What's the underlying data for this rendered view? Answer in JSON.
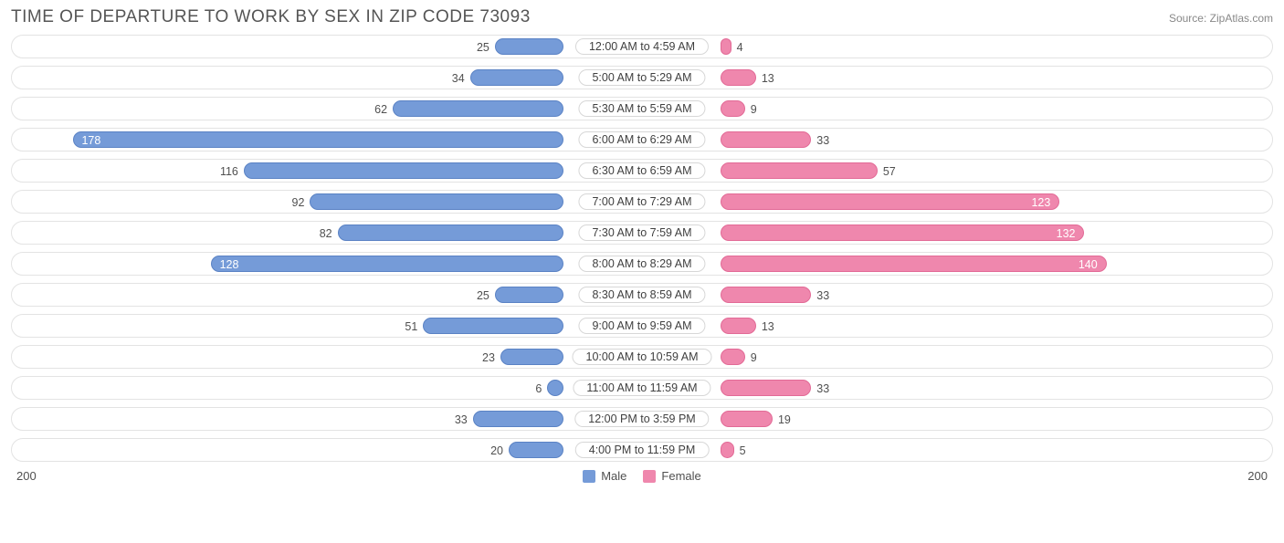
{
  "title": "TIME OF DEPARTURE TO WORK BY SEX IN ZIP CODE 73093",
  "source": "Source: ZipAtlas.com",
  "chart": {
    "type": "diverging-bar",
    "axis_max": 200,
    "axis_label_left": "200",
    "axis_label_right": "200",
    "track_border_color": "#e3e3e3",
    "track_bg": "#ffffff",
    "label_pill_border": "#d7d7d7",
    "text_color": "#505050",
    "male": {
      "label": "Male",
      "fill": "#759bd8",
      "border": "#5a82c4"
    },
    "female": {
      "label": "Female",
      "fill": "#ef87ad",
      "border": "#e26a96"
    },
    "label_fontsize": 12.5,
    "inside_threshold": 120,
    "rows": [
      {
        "category": "12:00 AM to 4:59 AM",
        "male": 25,
        "female": 4
      },
      {
        "category": "5:00 AM to 5:29 AM",
        "male": 34,
        "female": 13
      },
      {
        "category": "5:30 AM to 5:59 AM",
        "male": 62,
        "female": 9
      },
      {
        "category": "6:00 AM to 6:29 AM",
        "male": 178,
        "female": 33
      },
      {
        "category": "6:30 AM to 6:59 AM",
        "male": 116,
        "female": 57
      },
      {
        "category": "7:00 AM to 7:29 AM",
        "male": 92,
        "female": 123
      },
      {
        "category": "7:30 AM to 7:59 AM",
        "male": 82,
        "female": 132
      },
      {
        "category": "8:00 AM to 8:29 AM",
        "male": 128,
        "female": 140
      },
      {
        "category": "8:30 AM to 8:59 AM",
        "male": 25,
        "female": 33
      },
      {
        "category": "9:00 AM to 9:59 AM",
        "male": 51,
        "female": 13
      },
      {
        "category": "10:00 AM to 10:59 AM",
        "male": 23,
        "female": 9
      },
      {
        "category": "11:00 AM to 11:59 AM",
        "male": 6,
        "female": 33
      },
      {
        "category": "12:00 PM to 3:59 PM",
        "male": 33,
        "female": 19
      },
      {
        "category": "4:00 PM to 11:59 PM",
        "male": 20,
        "female": 5
      }
    ]
  }
}
